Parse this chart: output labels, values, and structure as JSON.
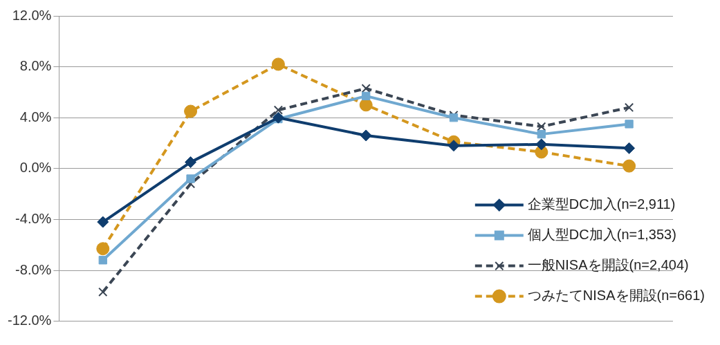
{
  "chart_data": {
    "type": "line",
    "categories": [
      null,
      null,
      null,
      null,
      null,
      null,
      null
    ],
    "series": [
      {
        "name": "企業型DC加入(n=2,911)",
        "color": "#0f3d6e",
        "marker": "diamond",
        "line_style": "solid",
        "values": [
          -4.2,
          0.5,
          4.0,
          2.6,
          1.8,
          1.9,
          1.6
        ]
      },
      {
        "name": "個人型DC加入(n=1,353)",
        "color": "#6fa8d0",
        "marker": "square",
        "line_style": "solid",
        "values": [
          -7.2,
          -0.8,
          3.9,
          5.7,
          4.0,
          2.7,
          3.5
        ]
      },
      {
        "name": "一般NISAを開設(n=2,404)",
        "color": "#3b4654",
        "marker": "cross",
        "line_style": "dashed",
        "values": [
          -9.7,
          -1.2,
          4.6,
          6.3,
          4.2,
          3.3,
          4.8
        ]
      },
      {
        "name": "つみたてNISAを開設(n=661)",
        "color": "#d4971e",
        "marker": "circle",
        "line_style": "dashed",
        "values": [
          -6.3,
          4.5,
          8.2,
          5.0,
          2.1,
          1.3,
          0.2
        ]
      }
    ],
    "ylim": [
      -12,
      12
    ],
    "yticks": [
      {
        "value": -12,
        "label": "-12.0%"
      },
      {
        "value": -8,
        "label": "-8.0%"
      },
      {
        "value": -4,
        "label": "-4.0%"
      },
      {
        "value": 0,
        "label": "0.0%"
      },
      {
        "value": 4,
        "label": "4.0%"
      },
      {
        "value": 8,
        "label": "8.0%"
      },
      {
        "value": 12,
        "label": "12.0%"
      }
    ],
    "grid": "y",
    "legend": "bottom right"
  }
}
